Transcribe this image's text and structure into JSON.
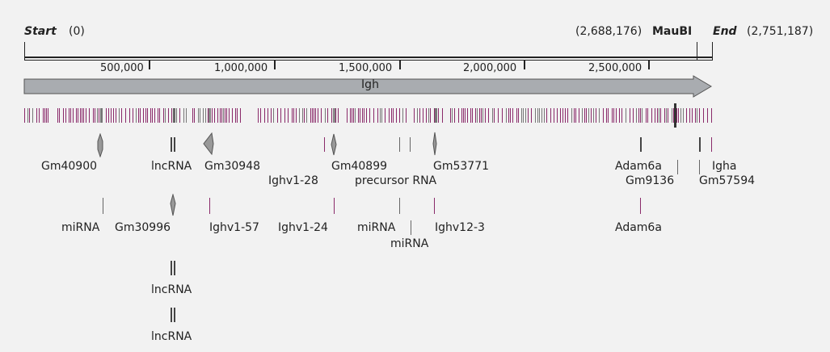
{
  "header": {
    "start_label": "Start",
    "start_value": "(0)",
    "mid_coord": "(2,688,176)",
    "mid_label": "MauBI",
    "end_label": "End",
    "end_value": "(2,751,187)"
  },
  "axis_ticks": [
    "500,000",
    "1,000,000",
    "1,500,000",
    "2,000,000",
    "2,500,000"
  ],
  "gene_label": "Igh",
  "features": {
    "gm40900": "Gm40900",
    "lncrna1": "lncRNA",
    "gm30948": "Gm30948",
    "ighv1_28": "Ighv1-28",
    "gm40899": "Gm40899",
    "precursor": "precursor RNA",
    "gm53771": "Gm53771",
    "adam6a_1": "Adam6a",
    "gm9136": "Gm9136",
    "igha": "Igha",
    "gm57594": "Gm57594",
    "mirna1": "miRNA",
    "gm30996": "Gm30996",
    "ighv1_57": "Ighv1-57",
    "ighv1_24": "Ighv1-24",
    "mirna2": "miRNA",
    "mirna3": "miRNA",
    "ighv12_3": "Ighv12-3",
    "adam6a_2": "Adam6a",
    "lncrna2": "lncRNA",
    "lncrna3": "lncRNA"
  },
  "colors": {
    "exon": "#8a2a6a",
    "arrow_fill": "#a9acb0",
    "glyph": "#888888"
  }
}
